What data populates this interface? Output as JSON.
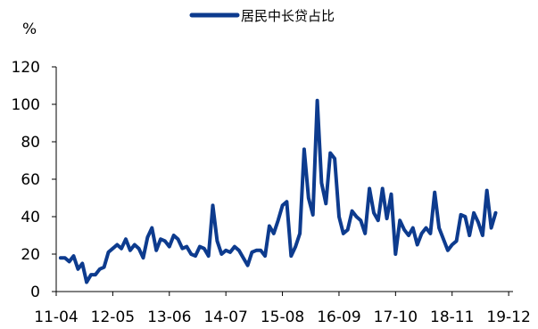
{
  "chart_data": {
    "type": "line",
    "unit_label": "%",
    "legend": {
      "position": "top-center"
    },
    "grid": false,
    "colors": {
      "series": "#0d3b8e",
      "axis": "#000000"
    },
    "xlim": [
      "2011-04",
      "2020-01"
    ],
    "ylim": [
      0,
      120
    ],
    "y_ticks": [
      0,
      20,
      40,
      60,
      80,
      100,
      120
    ],
    "x_ticks": [
      "11-04",
      "12-05",
      "13-06",
      "14-07",
      "15-08",
      "16-09",
      "17-10",
      "18-11",
      "19-12"
    ],
    "series": [
      {
        "name": "居民中长贷占比",
        "points": [
          [
            "2011-05",
            18
          ],
          [
            "2011-06",
            18
          ],
          [
            "2011-07",
            16
          ],
          [
            "2011-08",
            19
          ],
          [
            "2011-09",
            12
          ],
          [
            "2011-10",
            15
          ],
          [
            "2011-11",
            5
          ],
          [
            "2011-12",
            9
          ],
          [
            "2012-01",
            9
          ],
          [
            "2012-02",
            12
          ],
          [
            "2012-03",
            13
          ],
          [
            "2012-04",
            21
          ],
          [
            "2012-05",
            23
          ],
          [
            "2012-06",
            25
          ],
          [
            "2012-07",
            23
          ],
          [
            "2012-08",
            28
          ],
          [
            "2012-09",
            22
          ],
          [
            "2012-10",
            25
          ],
          [
            "2012-11",
            23
          ],
          [
            "2012-12",
            18
          ],
          [
            "2013-01",
            29
          ],
          [
            "2013-02",
            34
          ],
          [
            "2013-03",
            22
          ],
          [
            "2013-04",
            28
          ],
          [
            "2013-05",
            27
          ],
          [
            "2013-06",
            24
          ],
          [
            "2013-07",
            30
          ],
          [
            "2013-08",
            28
          ],
          [
            "2013-09",
            23
          ],
          [
            "2013-10",
            24
          ],
          [
            "2013-11",
            20
          ],
          [
            "2013-12",
            19
          ],
          [
            "2014-01",
            24
          ],
          [
            "2014-02",
            23
          ],
          [
            "2014-03",
            19
          ],
          [
            "2014-04",
            46
          ],
          [
            "2014-05",
            27
          ],
          [
            "2014-06",
            20
          ],
          [
            "2014-07",
            22
          ],
          [
            "2014-08",
            21
          ],
          [
            "2014-09",
            24
          ],
          [
            "2014-10",
            22
          ],
          [
            "2014-11",
            18
          ],
          [
            "2014-12",
            14
          ],
          [
            "2015-01",
            21
          ],
          [
            "2015-02",
            22
          ],
          [
            "2015-03",
            22
          ],
          [
            "2015-04",
            19
          ],
          [
            "2015-05",
            35
          ],
          [
            "2015-06",
            31
          ],
          [
            "2015-07",
            38
          ],
          [
            "2015-08",
            46
          ],
          [
            "2015-09",
            48
          ],
          [
            "2015-10",
            19
          ],
          [
            "2015-11",
            24
          ],
          [
            "2015-12",
            31
          ],
          [
            "2016-01",
            76
          ],
          [
            "2016-02",
            50
          ],
          [
            "2016-03",
            41
          ],
          [
            "2016-04",
            102
          ],
          [
            "2016-05",
            58
          ],
          [
            "2016-06",
            47
          ],
          [
            "2016-07",
            74
          ],
          [
            "2016-08",
            71
          ],
          [
            "2016-09",
            40
          ],
          [
            "2016-10",
            31
          ],
          [
            "2016-11",
            33
          ],
          [
            "2016-12",
            43
          ],
          [
            "2017-01",
            40
          ],
          [
            "2017-02",
            38
          ],
          [
            "2017-03",
            31
          ],
          [
            "2017-04",
            55
          ],
          [
            "2017-05",
            42
          ],
          [
            "2017-06",
            38
          ],
          [
            "2017-07",
            55
          ],
          [
            "2017-08",
            39
          ],
          [
            "2017-09",
            52
          ],
          [
            "2017-10",
            20
          ],
          [
            "2017-11",
            38
          ],
          [
            "2017-12",
            33
          ],
          [
            "2018-01",
            30
          ],
          [
            "2018-02",
            34
          ],
          [
            "2018-03",
            25
          ],
          [
            "2018-04",
            31
          ],
          [
            "2018-05",
            34
          ],
          [
            "2018-06",
            31
          ],
          [
            "2018-07",
            53
          ],
          [
            "2018-08",
            34
          ],
          [
            "2018-09",
            28
          ],
          [
            "2018-10",
            22
          ],
          [
            "2018-11",
            25
          ],
          [
            "2018-12",
            27
          ],
          [
            "2019-01",
            41
          ],
          [
            "2019-02",
            40
          ],
          [
            "2019-03",
            30
          ],
          [
            "2019-04",
            42
          ],
          [
            "2019-05",
            37
          ],
          [
            "2019-06",
            30
          ],
          [
            "2019-07",
            54
          ],
          [
            "2019-08",
            34
          ],
          [
            "2019-09",
            42
          ]
        ]
      }
    ]
  }
}
